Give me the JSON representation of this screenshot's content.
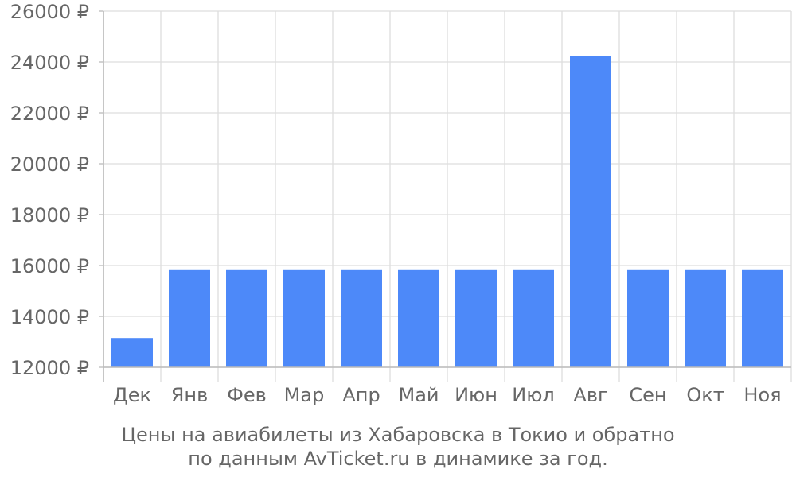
{
  "chart_data": {
    "type": "bar",
    "categories": [
      "Дек",
      "Янв",
      "Фев",
      "Мар",
      "Апр",
      "Май",
      "Июн",
      "Июл",
      "Авг",
      "Сен",
      "Окт",
      "Ноя"
    ],
    "values": [
      13150,
      15850,
      15850,
      15850,
      15850,
      15850,
      15850,
      15850,
      24230,
      15850,
      15850,
      15850
    ],
    "ylim": [
      12000,
      26000
    ],
    "yticks": [
      12000,
      14000,
      16000,
      18000,
      20000,
      22000,
      24000,
      26000
    ],
    "y_unit": "₽",
    "grid": true,
    "bar_color": "#4d89f9"
  },
  "caption": {
    "line1": "Цены на авиабилеты из Хабаровска в Токио и обратно",
    "line2": "по данным AvTicket.ru в динамике за год."
  }
}
